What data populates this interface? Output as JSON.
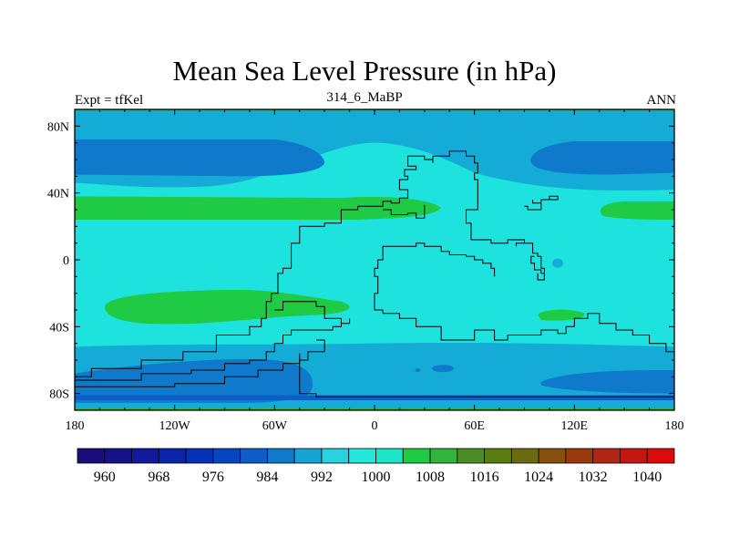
{
  "chart_data": {
    "type": "contour_map",
    "title": "Mean Sea Level Pressure (in hPa)",
    "left_subtitle": "Expt = tfKel",
    "center_subtitle": "314_6_MaBP",
    "right_subtitle": "ANN",
    "x_axis": {
      "range": [
        -180,
        180
      ],
      "ticks": [
        {
          "value": -180,
          "label": "180"
        },
        {
          "value": -120,
          "label": "120W"
        },
        {
          "value": -60,
          "label": "60W"
        },
        {
          "value": 0,
          "label": "0"
        },
        {
          "value": 60,
          "label": "60E"
        },
        {
          "value": 120,
          "label": "120E"
        },
        {
          "value": 180,
          "label": "180"
        }
      ]
    },
    "y_axis": {
      "range": [
        -90,
        90
      ],
      "ticks": [
        {
          "value": 80,
          "label": "80N"
        },
        {
          "value": 40,
          "label": "40N"
        },
        {
          "value": 0,
          "label": "0"
        },
        {
          "value": -40,
          "label": "40S"
        },
        {
          "value": -80,
          "label": "80S"
        }
      ]
    },
    "colorbar": {
      "levels": [
        956,
        960,
        964,
        968,
        972,
        976,
        980,
        984,
        988,
        992,
        996,
        1000,
        1004,
        1008,
        1012,
        1016,
        1020,
        1024,
        1028,
        1032,
        1036,
        1040,
        1044
      ],
      "colors": [
        "#1a0d7a",
        "#15128a",
        "#101a9a",
        "#0b25aa",
        "#0632b8",
        "#0545c0",
        "#0d5ec6",
        "#0f7acb",
        "#17a4d2",
        "#28d2de",
        "#27e6da",
        "#1fe5c8",
        "#1fcb45",
        "#33b53d",
        "#4a8c25",
        "#5a7d12",
        "#6a6a0e",
        "#85500d",
        "#9b3a0f",
        "#b12610",
        "#c61612",
        "#dd0a0a"
      ],
      "tick_labels": [
        "960",
        "968",
        "976",
        "984",
        "992",
        "1000",
        "1008",
        "1016",
        "1024",
        "1032",
        "1040"
      ],
      "tick_values": [
        960,
        968,
        976,
        984,
        992,
        1000,
        1008,
        1016,
        1024,
        1032,
        1040
      ]
    },
    "field_bands": [
      {
        "value": 1000,
        "color": "#1ee2de",
        "description": "background"
      },
      {
        "value": 992,
        "color": "#14acd6",
        "lat_range": [
          72,
          90
        ]
      },
      {
        "value": 988,
        "color": "#0f7acb",
        "lat_range": [
          50,
          72
        ],
        "lon_range": [
          -180,
          -30
        ]
      },
      {
        "value": 988,
        "color": "#0f7acb",
        "lat_range": [
          50,
          72
        ],
        "lon_range": [
          95,
          180
        ]
      },
      {
        "value": 992,
        "color": "#14acd6",
        "lat_range": [
          42,
          74
        ],
        "lon_range": [
          -180,
          180
        ]
      },
      {
        "value": 1008,
        "color": "#1fcb45",
        "lat_range": [
          24,
          38
        ],
        "lon_range": [
          -180,
          40
        ]
      },
      {
        "value": 1008,
        "color": "#1fcb45",
        "lat_range": [
          24,
          34
        ],
        "lon_range": [
          133,
          180
        ]
      },
      {
        "value": 1008,
        "color": "#1fcb45",
        "lat_range": [
          -40,
          -18
        ],
        "lon_range": [
          -163,
          -15
        ]
      },
      {
        "value": 1008,
        "color": "#1fcb45",
        "lat_range": [
          -37,
          -30
        ],
        "lon_range": [
          98,
          127
        ]
      },
      {
        "value": 992,
        "color": "#14acd6",
        "lat_range": [
          -90,
          -48
        ],
        "lon_range": [
          -180,
          180
        ]
      },
      {
        "value": 988,
        "color": "#0f7acb",
        "lat_range": [
          -86,
          -60
        ],
        "lon_range": [
          -180,
          -40
        ]
      },
      {
        "value": 988,
        "color": "#0f7acb",
        "lat_range": [
          -80,
          -66
        ],
        "lon_range": [
          100,
          175
        ]
      },
      {
        "value": 984,
        "color": "#0d5ec6",
        "lat_range": [
          -90,
          -80
        ],
        "lon_range": [
          -180,
          180
        ]
      }
    ]
  }
}
